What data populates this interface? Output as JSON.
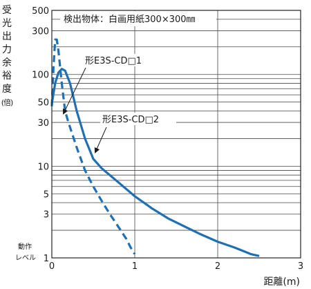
{
  "chart_data": {
    "type": "line",
    "annotation": "検出物体：白画用紙300×300㎜",
    "ylabel": [
      "受",
      "光",
      "出",
      "力",
      "余",
      "裕",
      "度",
      "(倍)"
    ],
    "xlabel": "距離(m)",
    "y_level_label_1": "動作",
    "y_level_label_2": "レベル",
    "y_scale": "log",
    "ylim": [
      1,
      500
    ],
    "xlim": [
      0,
      3
    ],
    "xtick_labels": [
      "0",
      "1",
      "2",
      "3"
    ],
    "ytick_labels": [
      {
        "value": 500,
        "label": "500"
      },
      {
        "value": 300,
        "label": "300"
      },
      {
        "value": 100,
        "label": "100"
      },
      {
        "value": 50,
        "label": "50"
      },
      {
        "value": 30,
        "label": "30"
      },
      {
        "value": 10,
        "label": "10"
      },
      {
        "value": 5,
        "label": "5"
      },
      {
        "value": 3,
        "label": "3"
      },
      {
        "value": 1,
        "label": "1"
      }
    ],
    "grid": true,
    "series": [
      {
        "name": "形E3S-CD□1",
        "style": "dashed",
        "color": "#1f6fb4",
        "points": [
          [
            0.0,
            45
          ],
          [
            0.02,
            120
          ],
          [
            0.04,
            240
          ],
          [
            0.06,
            240
          ],
          [
            0.08,
            180
          ],
          [
            0.12,
            80
          ],
          [
            0.16,
            40
          ],
          [
            0.2,
            30
          ],
          [
            0.3,
            16
          ],
          [
            0.4,
            9
          ],
          [
            0.5,
            6
          ],
          [
            0.6,
            4.2
          ],
          [
            0.7,
            3.0
          ],
          [
            0.8,
            2.2
          ],
          [
            0.9,
            1.6
          ],
          [
            0.95,
            1.3
          ],
          [
            1.0,
            1.1
          ]
        ]
      },
      {
        "name": "形E3S-CD□2",
        "style": "solid",
        "color": "#1f6fb4",
        "points": [
          [
            0.0,
            48
          ],
          [
            0.04,
            80
          ],
          [
            0.08,
            105
          ],
          [
            0.12,
            115
          ],
          [
            0.16,
            110
          ],
          [
            0.22,
            80
          ],
          [
            0.3,
            40
          ],
          [
            0.4,
            20
          ],
          [
            0.5,
            12
          ],
          [
            0.6,
            9.5
          ],
          [
            0.8,
            6.7
          ],
          [
            1.0,
            4.7
          ],
          [
            1.2,
            3.5
          ],
          [
            1.4,
            2.7
          ],
          [
            1.6,
            2.2
          ],
          [
            1.8,
            1.8
          ],
          [
            2.0,
            1.5
          ],
          [
            2.2,
            1.3
          ],
          [
            2.4,
            1.1
          ],
          [
            2.5,
            1.05
          ]
        ]
      }
    ]
  }
}
